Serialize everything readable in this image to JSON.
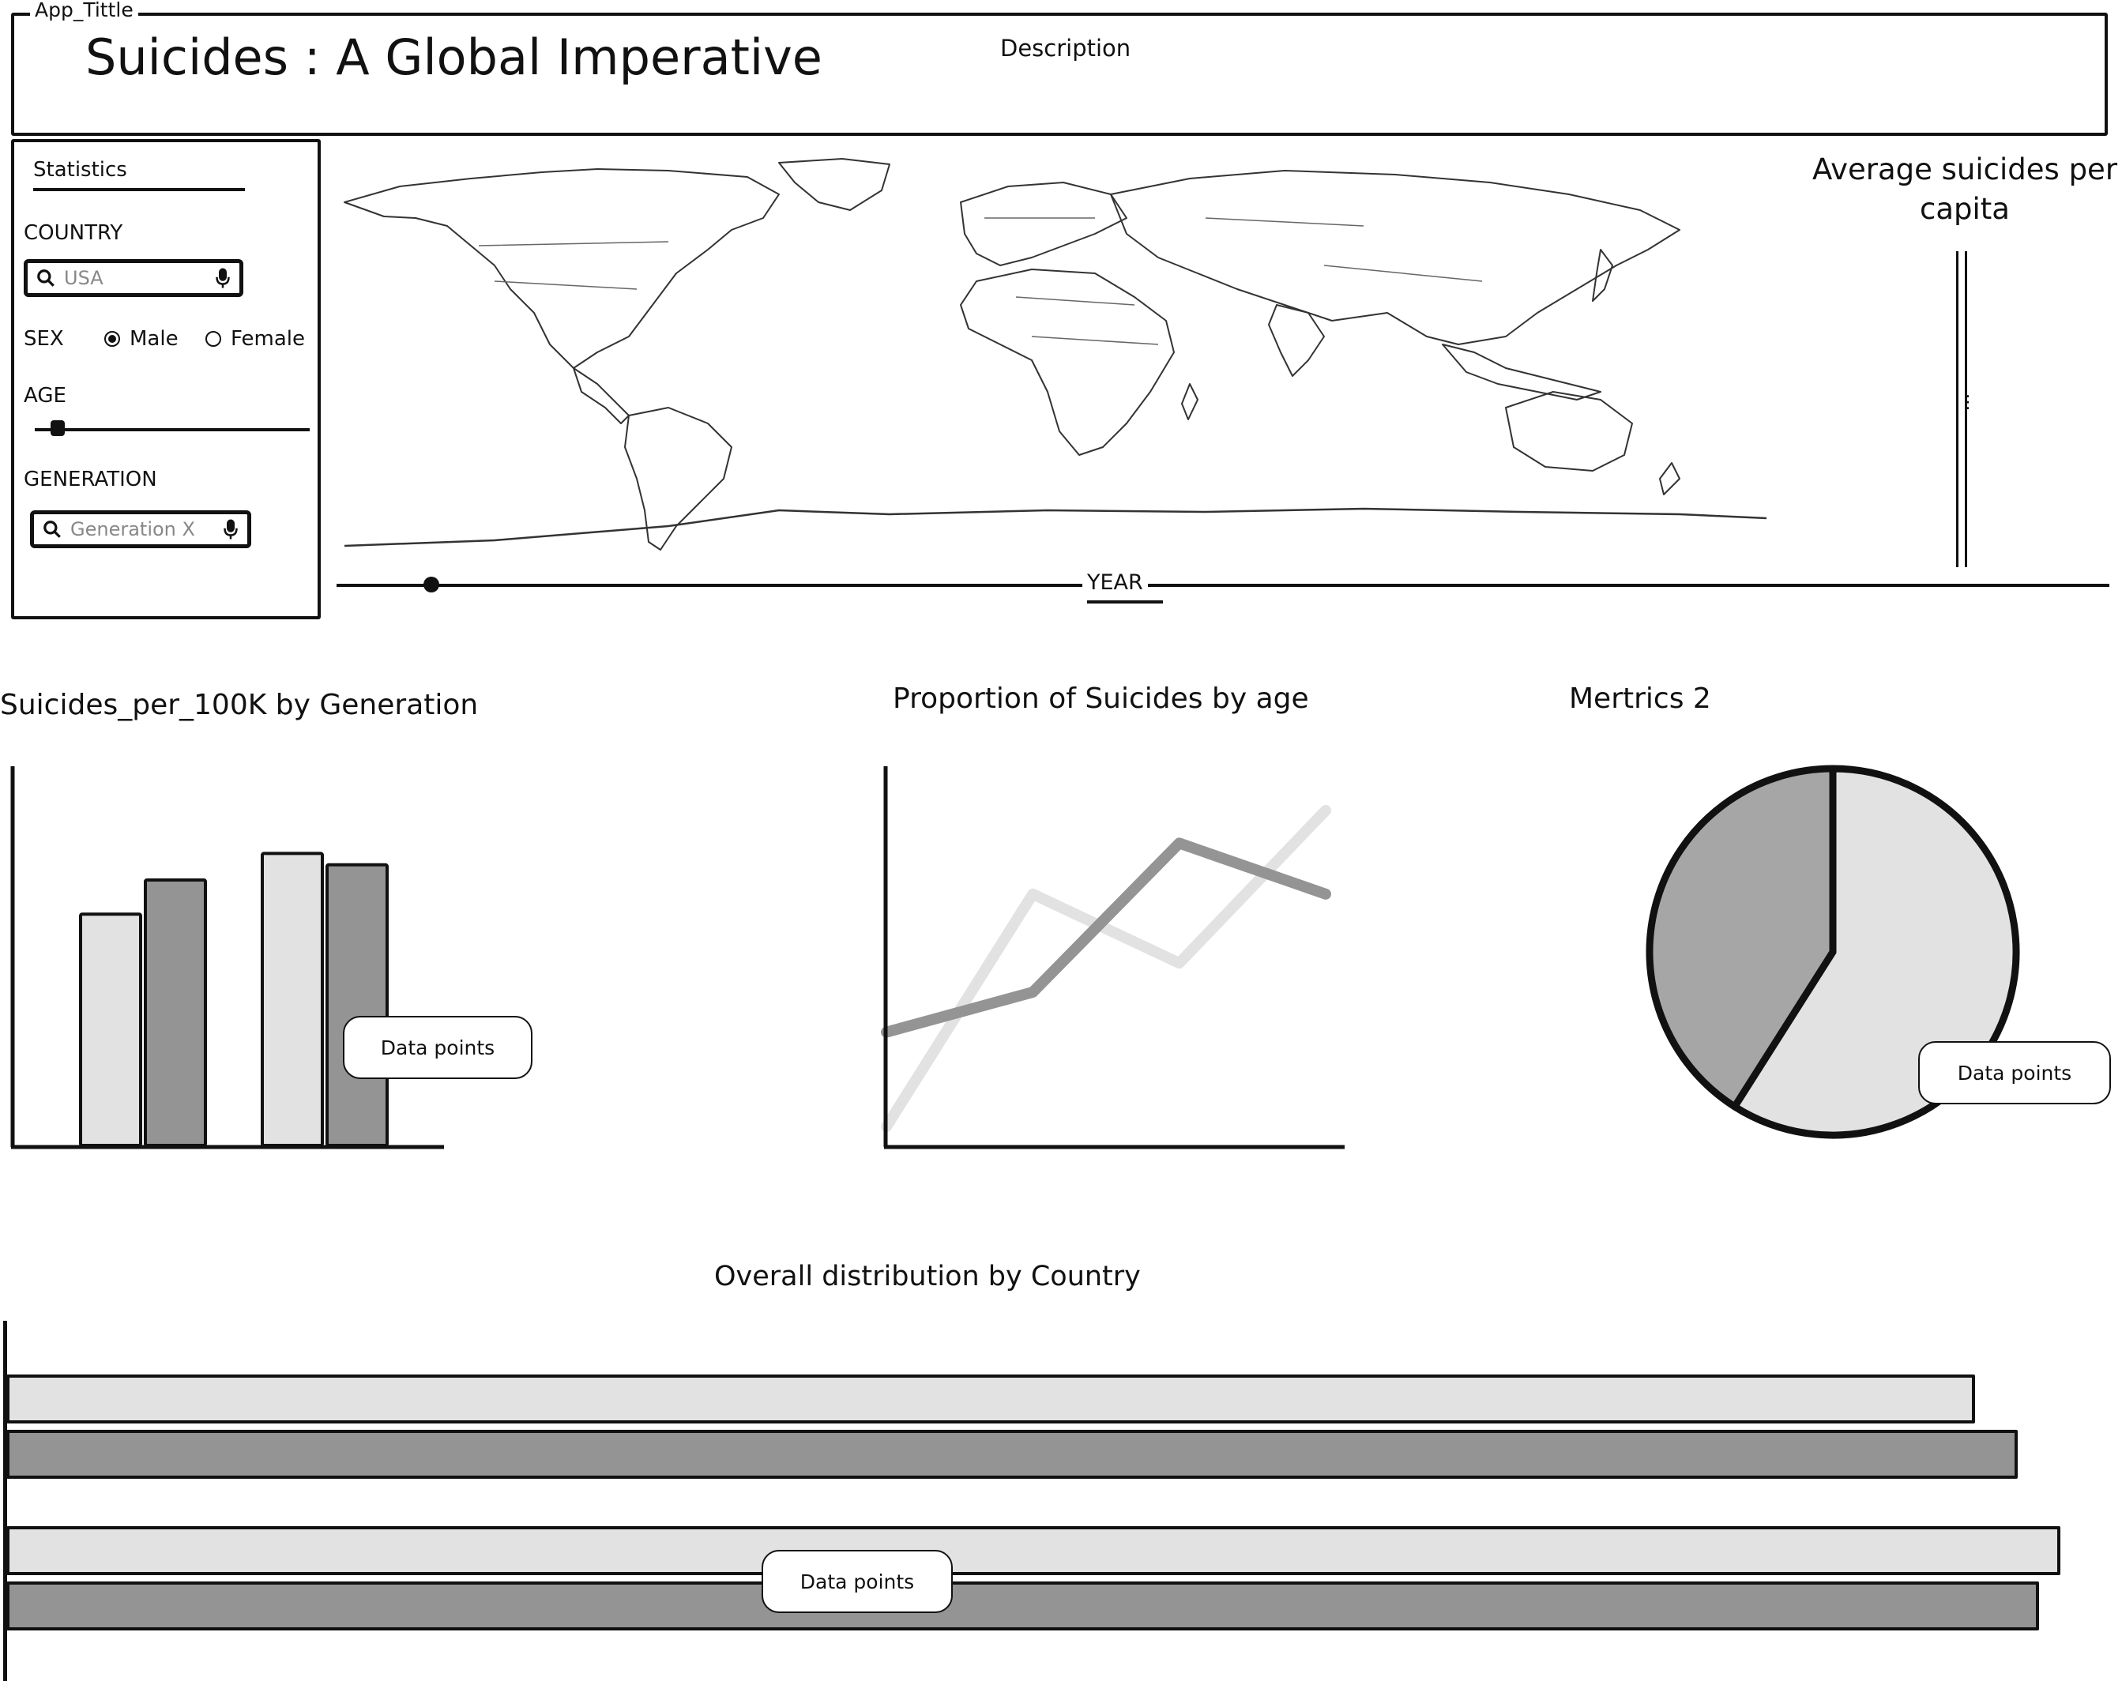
{
  "header": {
    "frame_label": "App_Tittle",
    "title": "Suicides : A Global Imperative",
    "description": "Description"
  },
  "filters": {
    "section_title": "Statistics",
    "country": {
      "label": "COUNTRY",
      "placeholder": "USA"
    },
    "sex": {
      "label": "SEX",
      "options": [
        "Male",
        "Female"
      ],
      "selected": "Male"
    },
    "age": {
      "label": "AGE",
      "slider_value": 0.1
    },
    "generation": {
      "label": "GENERATION",
      "placeholder": "Generation X"
    }
  },
  "map": {
    "legend_title": "Average suicides per capita",
    "year_label": "YEAR",
    "year_slider_value": 0.05
  },
  "charts": {
    "bar": {
      "title": "Suicides_per_100K by Generation",
      "callout": "Data points"
    },
    "line": {
      "title": "Proportion of Suicides by age"
    },
    "pie": {
      "title": "Mertrics 2",
      "callout": "Data points"
    },
    "hbar": {
      "title": "Overall distribution by Country",
      "callout": "Data points"
    }
  },
  "colors": {
    "light": "#e2e2e2",
    "dark": "#949494",
    "mid": "#a6a6a6",
    "ink": "#111111"
  },
  "chart_data": [
    {
      "type": "bar",
      "title": "Suicides_per_100K by Generation",
      "categories": [
        "",
        ""
      ],
      "series": [
        {
          "values": [
            61,
            77
          ]
        },
        {
          "values": [
            70,
            74
          ]
        }
      ]
    },
    {
      "type": "line",
      "title": "Proportion of Suicides by age",
      "x": [
        0,
        1,
        2,
        3
      ],
      "series": [
        {
          "values": [
            3,
            67,
            48,
            90
          ]
        },
        {
          "values": [
            29,
            40,
            81,
            67
          ]
        }
      ]
    },
    {
      "type": "pie",
      "title": "Mertrics 2",
      "values": [
        59,
        41
      ]
    },
    {
      "type": "bar",
      "orientation": "horizontal",
      "title": "Overall distribution by Country",
      "series": [
        {
          "values": [
            93,
            97
          ]
        },
        {
          "values": [
            95,
            96
          ]
        }
      ]
    }
  ]
}
